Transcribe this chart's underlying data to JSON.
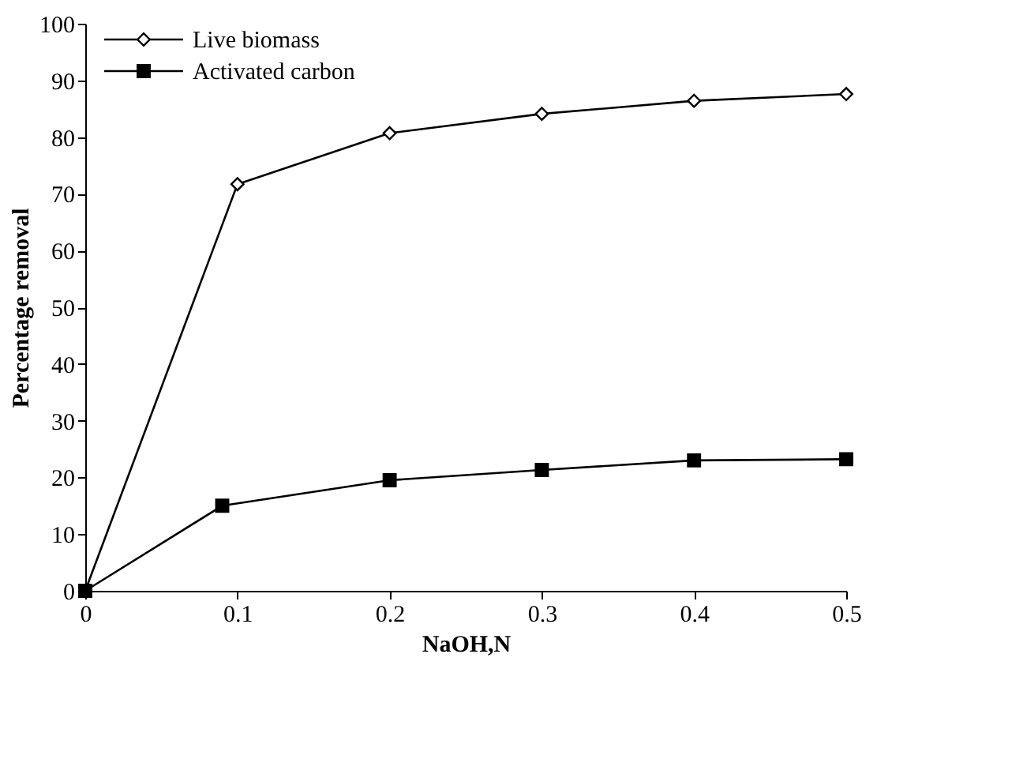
{
  "chart_data": {
    "type": "line",
    "xlabel": "NaOH,N",
    "ylabel": "Percentage removal",
    "xlim": [
      0,
      0.5
    ],
    "xticks": [
      0,
      0.1,
      0.2,
      0.3,
      0.4,
      0.5
    ],
    "ylim": [
      0,
      100
    ],
    "yticks": [
      0,
      10,
      20,
      30,
      40,
      50,
      60,
      70,
      80,
      90,
      100
    ],
    "grid": false,
    "legend": "top left",
    "line_style": "solid",
    "series": [
      {
        "name": "Live biomass",
        "color": "#000000",
        "marker": "diamond",
        "x": [
          0,
          0.1,
          0.2,
          0.3,
          0.4,
          0.5
        ],
        "values": [
          0,
          71.7,
          80.7,
          84.1,
          86.4,
          87.6
        ]
      },
      {
        "name": "Activated carbon",
        "color": "#000000",
        "marker": "square",
        "x": [
          0,
          0.09,
          0.2,
          0.3,
          0.4,
          0.5
        ],
        "values": [
          0,
          15,
          19.5,
          21.3,
          23,
          23.2
        ]
      }
    ]
  }
}
